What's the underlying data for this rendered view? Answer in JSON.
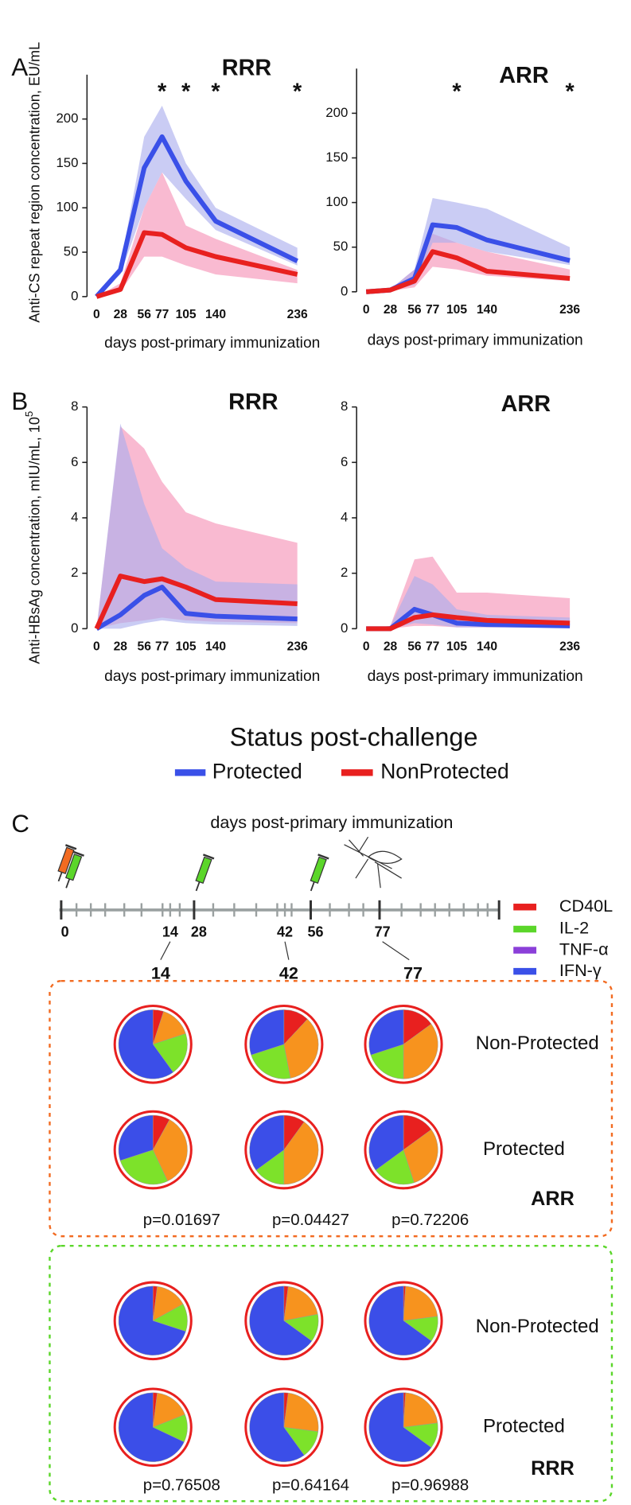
{
  "panel_labels": [
    "A",
    "B",
    "C"
  ],
  "chart_data": [
    {
      "type": "line",
      "title": "RRR",
      "title_color": "#5bd62a",
      "y_label": "Anti-CS repeat region concentration, EU/mL",
      "x_label": "days post-primary immunization",
      "x": [
        0,
        28,
        56,
        77,
        105,
        140,
        236
      ],
      "xlim": [
        0,
        236
      ],
      "xticks": [
        0,
        28,
        56,
        77,
        105,
        140,
        236
      ],
      "highlight_xtick": 77,
      "highlight_color": "#e8201f",
      "ylim": [
        0,
        250
      ],
      "yticks": [
        0,
        50,
        100,
        150,
        200
      ],
      "annotations": [
        {
          "text": "*",
          "x": 77
        },
        {
          "text": "*",
          "x": 105
        },
        {
          "text": "*",
          "x": 140
        },
        {
          "text": "*",
          "x": 236
        }
      ],
      "series": [
        {
          "name": "Protected",
          "color": "#3a50e8",
          "band_color": "#a9acee",
          "values": [
            0,
            30,
            145,
            180,
            130,
            85,
            40
          ],
          "lower": [
            0,
            25,
            100,
            140,
            110,
            75,
            35
          ],
          "upper": [
            0,
            35,
            180,
            215,
            150,
            100,
            55
          ]
        },
        {
          "name": "NonProtected",
          "color": "#e8201f",
          "band_color": "#f590b4",
          "values": [
            0,
            8,
            72,
            70,
            55,
            45,
            25
          ],
          "lower": [
            0,
            5,
            45,
            45,
            35,
            25,
            15
          ],
          "upper": [
            0,
            15,
            100,
            140,
            80,
            65,
            30
          ]
        }
      ]
    },
    {
      "type": "line",
      "title": "ARR",
      "title_color": "#f26b21",
      "x_label": "days post-primary immunization",
      "x": [
        0,
        28,
        56,
        77,
        105,
        140,
        236
      ],
      "xlim": [
        0,
        236
      ],
      "xticks": [
        0,
        28,
        56,
        77,
        105,
        140,
        236
      ],
      "highlight_xtick": 77,
      "highlight_color": "#e8201f",
      "ylim": [
        0,
        250
      ],
      "yticks": [
        0,
        50,
        100,
        150,
        200
      ],
      "annotations": [
        {
          "text": "*",
          "x": 105
        },
        {
          "text": "*",
          "x": 236
        }
      ],
      "series": [
        {
          "color": "#3a50e8",
          "band_color": "#a9acee",
          "values": [
            0,
            2,
            15,
            75,
            72,
            58,
            35
          ],
          "lower": [
            0,
            1,
            8,
            55,
            55,
            45,
            30
          ],
          "upper": [
            0,
            3,
            25,
            105,
            100,
            93,
            50
          ]
        },
        {
          "color": "#e8201f",
          "band_color": "#f590b4",
          "values": [
            0,
            2,
            12,
            45,
            38,
            23,
            15
          ],
          "lower": [
            0,
            1,
            5,
            28,
            25,
            18,
            12
          ],
          "upper": [
            0,
            3,
            25,
            65,
            55,
            45,
            25
          ]
        }
      ]
    },
    {
      "type": "line",
      "title": "RRR",
      "title_color": "#5bd62a",
      "y_label": "Anti-HBsAg concentration, mIU/mL, 10",
      "y_label_exponent": "5",
      "x_label": "days post-primary immunization",
      "x": [
        0,
        28,
        56,
        77,
        105,
        140,
        236
      ],
      "xlim": [
        0,
        236
      ],
      "xticks": [
        0,
        28,
        56,
        77,
        105,
        140,
        236
      ],
      "highlight_xtick": 77,
      "highlight_color": "#e8201f",
      "ylim": [
        0,
        8
      ],
      "yticks": [
        0,
        2,
        4,
        6,
        8
      ],
      "series": [
        {
          "color": "#3a50e8",
          "band_color": "#a9acee",
          "values": [
            0,
            0.5,
            1.2,
            1.5,
            0.55,
            0.45,
            0.35
          ],
          "lower": [
            0,
            0,
            0.2,
            0.3,
            0.2,
            0.15,
            0.1
          ],
          "upper": [
            0,
            7.4,
            4.5,
            2.9,
            2.2,
            1.7,
            1.6
          ]
        },
        {
          "color": "#e8201f",
          "band_color": "#f590b4",
          "values": [
            0,
            1.9,
            1.7,
            1.8,
            1.5,
            1.05,
            0.9
          ],
          "lower": [
            0,
            0.2,
            0.3,
            0.4,
            0.3,
            0.25,
            0.2
          ],
          "upper": [
            0,
            7.3,
            6.5,
            5.3,
            4.2,
            3.8,
            3.1
          ]
        }
      ]
    },
    {
      "type": "line",
      "title": "ARR",
      "title_color": "#f26b21",
      "x_label": "days post-primary immunization",
      "x": [
        0,
        28,
        56,
        77,
        105,
        140,
        236
      ],
      "xlim": [
        0,
        236
      ],
      "xticks": [
        0,
        28,
        56,
        77,
        105,
        140,
        236
      ],
      "highlight_xtick": 77,
      "highlight_color": "#e8201f",
      "ylim": [
        0,
        8
      ],
      "yticks": [
        0,
        2,
        4,
        6,
        8
      ],
      "series": [
        {
          "color": "#3a50e8",
          "band_color": "#a9acee",
          "values": [
            0,
            0,
            0.7,
            0.5,
            0.2,
            0.15,
            0.1
          ],
          "lower": [
            0,
            0,
            0.2,
            0.15,
            0.05,
            0.05,
            0.05
          ],
          "upper": [
            0,
            0.1,
            1.9,
            1.6,
            0.7,
            0.5,
            0.4
          ]
        },
        {
          "color": "#e8201f",
          "band_color": "#f590b4",
          "values": [
            0,
            0,
            0.4,
            0.5,
            0.4,
            0.3,
            0.2
          ],
          "lower": [
            0,
            0,
            0.1,
            0.1,
            0.05,
            0.05,
            0.05
          ],
          "upper": [
            0,
            0.1,
            2.5,
            2.6,
            1.3,
            1.3,
            1.1
          ]
        }
      ]
    },
    {
      "type": "pie",
      "values": [
        5,
        15,
        20,
        60
      ],
      "colors": [
        "#e8201f",
        "#f7931e",
        "#7de22a",
        "#3b4ee8"
      ]
    },
    {
      "type": "pie",
      "values": [
        12,
        35,
        23,
        30
      ],
      "colors": [
        "#e8201f",
        "#f7931e",
        "#7de22a",
        "#3b4ee8"
      ]
    },
    {
      "type": "pie",
      "values": [
        15,
        35,
        20,
        30
      ],
      "colors": [
        "#e8201f",
        "#f7931e",
        "#7de22a",
        "#3b4ee8"
      ]
    },
    {
      "type": "pie",
      "values": [
        8,
        35,
        27,
        30
      ],
      "colors": [
        "#e8201f",
        "#f7931e",
        "#7de22a",
        "#3b4ee8"
      ]
    },
    {
      "type": "pie",
      "values": [
        10,
        40,
        15,
        35
      ],
      "colors": [
        "#e8201f",
        "#f7931e",
        "#7de22a",
        "#3b4ee8"
      ]
    },
    {
      "type": "pie",
      "values": [
        15,
        30,
        20,
        35
      ],
      "colors": [
        "#e8201f",
        "#f7931e",
        "#7de22a",
        "#3b4ee8"
      ]
    },
    {
      "type": "pie",
      "values": [
        2,
        15,
        13,
        70
      ],
      "colors": [
        "#e8201f",
        "#f7931e",
        "#7de22a",
        "#3b4ee8"
      ]
    },
    {
      "type": "pie",
      "values": [
        2,
        20,
        13,
        65
      ],
      "colors": [
        "#e8201f",
        "#f7931e",
        "#7de22a",
        "#3b4ee8"
      ]
    },
    {
      "type": "pie",
      "values": [
        1,
        22,
        12,
        65
      ],
      "colors": [
        "#e8201f",
        "#f7931e",
        "#7de22a",
        "#3b4ee8"
      ]
    },
    {
      "type": "pie",
      "values": [
        2,
        17,
        13,
        68
      ],
      "colors": [
        "#e8201f",
        "#f7931e",
        "#7de22a",
        "#3b4ee8"
      ]
    },
    {
      "type": "pie",
      "values": [
        2,
        25,
        13,
        60
      ],
      "colors": [
        "#e8201f",
        "#f7931e",
        "#7de22a",
        "#3b4ee8"
      ]
    },
    {
      "type": "pie",
      "values": [
        1,
        22,
        12,
        65
      ],
      "colors": [
        "#e8201f",
        "#f7931e",
        "#7de22a",
        "#3b4ee8"
      ]
    }
  ],
  "legend": {
    "title": "Status post-challenge"
  },
  "timeline": {
    "title": "days post-primary immunization",
    "labels": [
      "0",
      "14",
      "28",
      "42",
      "56",
      "77"
    ],
    "callouts": [
      "14",
      "42",
      "77"
    ]
  },
  "markers": [
    {
      "name": "CD40L",
      "color": "#e8201f"
    },
    {
      "name": "IL-2",
      "color": "#5bd62a"
    },
    {
      "name": "TNF-α",
      "color": "#8b3fd9"
    },
    {
      "name": "IFN-γ",
      "color": "#3a50e8"
    }
  ],
  "groups": [
    {
      "name": "ARR",
      "color": "#f26b21",
      "rows": [
        {
          "label": "Non-Protected",
          "color": "#e8201f"
        },
        {
          "label": "Protected",
          "color": "#3a50e8"
        }
      ],
      "p_values": [
        "p=0.01697",
        "p=0.04427",
        "p=0.72206"
      ]
    },
    {
      "name": "RRR",
      "color": "#5bd62a",
      "rows": [
        {
          "label": "Non-Protected",
          "color": "#e8201f"
        },
        {
          "label": "Protected",
          "color": "#3a50e8"
        }
      ],
      "p_values": [
        "p=0.76508",
        "p=0.64164",
        "p=0.96988"
      ]
    }
  ]
}
